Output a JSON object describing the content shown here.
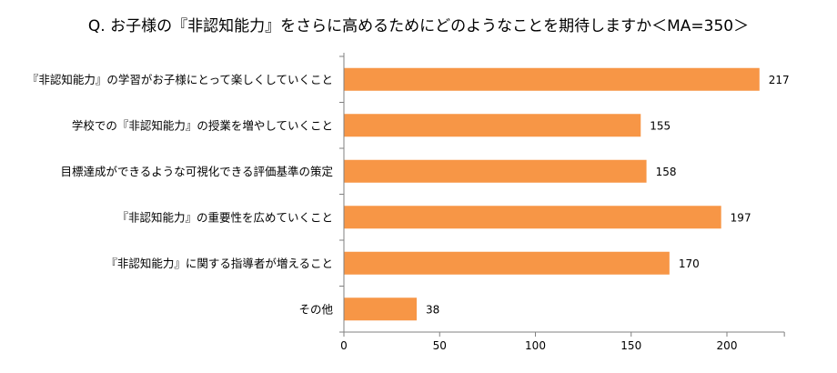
{
  "chart_data": {
    "type": "bar",
    "orientation": "horizontal",
    "title": "Q. お子様の『非認知能力』をさらに高めるためにどのようなことを期待しますか＜MA=350＞",
    "categories": [
      "『非認知能力』の学習がお子様にとって楽しくしていくこと",
      "学校での『非認知能力』の授業を増やしていくこと",
      "目標達成ができるような可視化できる評価基準の策定",
      "『非認知能力』の重要性を広めていくこと",
      "『非認知能力』に関する指導者が増えること",
      "その他"
    ],
    "values": [
      217,
      155,
      158,
      197,
      170,
      38
    ],
    "xlim": [
      0,
      230
    ],
    "xticks": [
      0,
      50,
      100,
      150,
      200
    ],
    "xlabel": "",
    "ylabel": "",
    "grid": false,
    "legend": "none",
    "bar_color": "#F79646",
    "data_labels": true
  }
}
